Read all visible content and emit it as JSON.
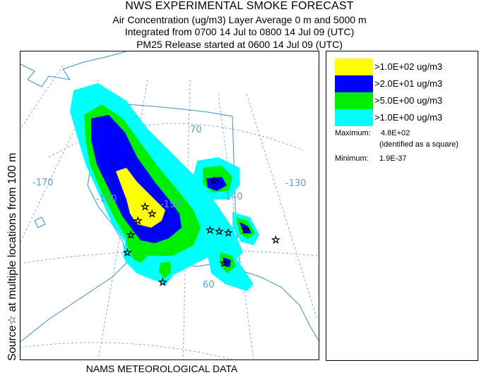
{
  "header": {
    "title": "NWS EXPERIMENTAL SMOKE FORECAST",
    "line2": "Air Concentration (ug/m3) Layer Average    0 m and  5000 m",
    "line3": "Integrated from 0700 14 Jul to 0800 14 Jul 09 (UTC)",
    "line4": "PM25 Release started at 0600 14 Jul 09 (UTC)"
  },
  "side_label": "Source☆ at multiple locations  from   100 m",
  "footer": "NAMS METEOROLOGICAL DATA",
  "map": {
    "graticule_labels": [
      "-170",
      "-160",
      "-150",
      "-140",
      "-130",
      "70",
      "60"
    ],
    "colors": {
      "grid": "#5aa0cc",
      "coast": "#3b8fc7"
    }
  },
  "legend": {
    "items": [
      {
        "label": ">1.0E+02 ug/m3",
        "color": "#ffff00"
      },
      {
        "label": ">2.0E+01 ug/m3",
        "color": "#0000ff"
      },
      {
        "label": ">5.0E+00 ug/m3",
        "color": "#00ee00"
      },
      {
        "label": ">1.0E+00 ug/m3",
        "color": "#00ffff"
      }
    ],
    "maximum_label": "Maximum:",
    "maximum_value": "4.8E+02",
    "maximum_note": "(identified as a square)",
    "minimum_label": "Minimum:",
    "minimum_value": "1.9E-37"
  }
}
